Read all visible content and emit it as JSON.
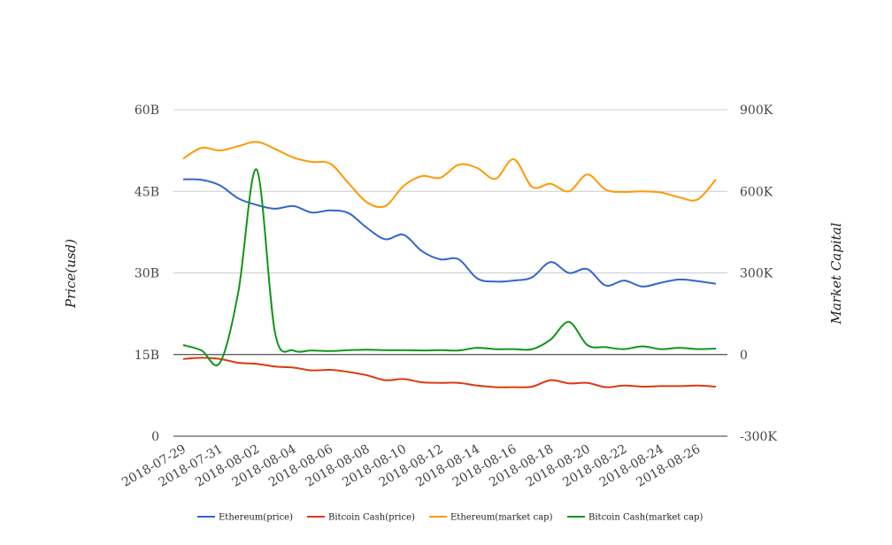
{
  "chart_data": {
    "type": "line",
    "y_left_label": "Price(usd)",
    "y_right_label": "Market Capital",
    "y_left_ticks": [
      "0",
      "15B",
      "30B",
      "45B",
      "60B"
    ],
    "y_left_range": [
      0,
      60
    ],
    "y_right_ticks": [
      "-300K",
      "0",
      "300K",
      "600K",
      "900K"
    ],
    "y_right_range": [
      -300,
      900
    ],
    "x_ticks": [
      "2018-07-29",
      "2018-07-31",
      "2018-08-02",
      "2018-08-04",
      "2018-08-06",
      "2018-08-08",
      "2018-08-10",
      "2018-08-12",
      "2018-08-14",
      "2018-08-16",
      "2018-08-18",
      "2018-08-20",
      "2018-08-22",
      "2018-08-24",
      "2018-08-26"
    ],
    "x": [
      "2018-07-29",
      "2018-07-30",
      "2018-07-31",
      "2018-08-01",
      "2018-08-02",
      "2018-08-03",
      "2018-08-04",
      "2018-08-05",
      "2018-08-06",
      "2018-08-07",
      "2018-08-08",
      "2018-08-09",
      "2018-08-10",
      "2018-08-11",
      "2018-08-12",
      "2018-08-13",
      "2018-08-14",
      "2018-08-15",
      "2018-08-16",
      "2018-08-17",
      "2018-08-18",
      "2018-08-19",
      "2018-08-20",
      "2018-08-21",
      "2018-08-22",
      "2018-08-23",
      "2018-08-24",
      "2018-08-25",
      "2018-08-26",
      "2018-08-27"
    ],
    "zero_line_right": 0,
    "grid": true,
    "legend_position": "bottom",
    "series": [
      {
        "name": "Ethereum(price)",
        "axis": "left",
        "color": "#3366cc",
        "values": [
          47.2,
          47.1,
          46.1,
          43.7,
          42.5,
          41.8,
          42.3,
          41.1,
          41.5,
          41.0,
          38.3,
          36.2,
          37.0,
          34.0,
          32.5,
          32.5,
          29.0,
          28.4,
          28.6,
          29.2,
          32.0,
          30.0,
          30.7,
          27.7,
          28.6,
          27.5,
          28.2,
          28.8,
          28.5,
          28.0
        ]
      },
      {
        "name": "Bitcoin Cash(price)",
        "axis": "left",
        "color": "#dc3912",
        "values": [
          14.2,
          14.4,
          14.2,
          13.5,
          13.3,
          12.8,
          12.6,
          12.1,
          12.2,
          11.8,
          11.2,
          10.3,
          10.5,
          9.9,
          9.8,
          9.8,
          9.3,
          9.0,
          9.0,
          9.1,
          10.3,
          9.7,
          9.8,
          9.0,
          9.3,
          9.1,
          9.2,
          9.2,
          9.3,
          9.1
        ]
      },
      {
        "name": "Ethereum(market cap)",
        "axis": "left",
        "color": "#ff9900",
        "values": [
          51.0,
          53.0,
          52.5,
          53.3,
          54.1,
          52.8,
          51.2,
          50.4,
          50.1,
          46.5,
          43.0,
          42.3,
          46.0,
          47.8,
          47.5,
          49.9,
          49.3,
          47.3,
          50.9,
          45.8,
          46.4,
          45.0,
          48.1,
          45.3,
          44.9,
          45.0,
          44.8,
          43.9,
          43.5,
          47.2
        ]
      },
      {
        "name": "Bitcoin Cash(market cap)",
        "axis": "right",
        "color": "#109618",
        "values": [
          35,
          15,
          -30,
          230,
          680,
          80,
          15,
          15,
          13,
          16,
          18,
          16,
          16,
          15,
          16,
          15,
          25,
          20,
          20,
          20,
          55,
          120,
          35,
          27,
          20,
          30,
          20,
          25,
          20,
          22
        ]
      }
    ]
  }
}
